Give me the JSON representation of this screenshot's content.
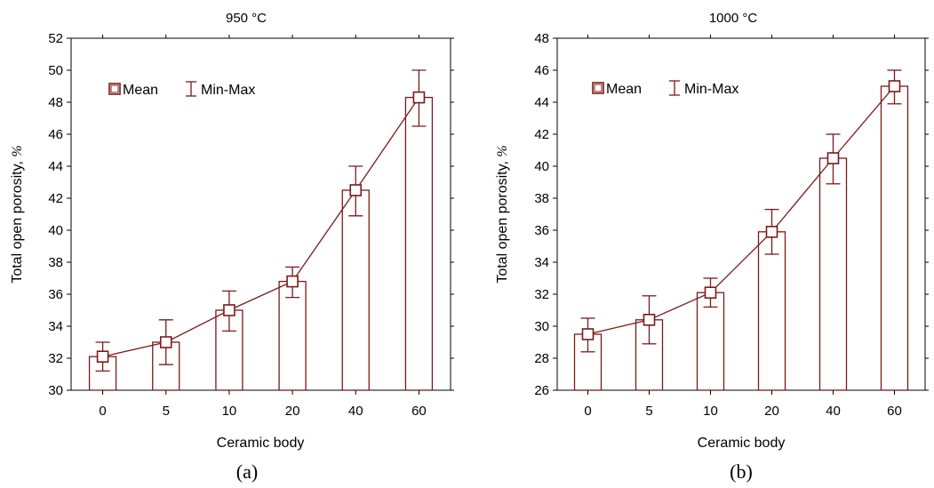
{
  "chart_data": [
    {
      "type": "bar",
      "title": "950 °C",
      "caption": "(a)",
      "xlabel": "Ceramic body",
      "ylabel_text": "Total open porosity, ",
      "ylabel_unit": "%",
      "categories": [
        "0",
        "5",
        "10",
        "20",
        "40",
        "60"
      ],
      "ylim": [
        30,
        52
      ],
      "yticks": [
        30,
        32,
        34,
        36,
        38,
        40,
        42,
        44,
        46,
        48,
        50,
        52
      ],
      "legend": {
        "placement": "top-left",
        "mean_label": "Mean",
        "minmax_label": "Min-Max"
      },
      "series": [
        {
          "name": "Mean",
          "values": [
            32.1,
            33.0,
            35.0,
            36.8,
            42.5,
            48.3
          ]
        },
        {
          "name": "Min",
          "values": [
            31.2,
            31.6,
            33.7,
            35.8,
            40.9,
            46.5
          ]
        },
        {
          "name": "Max",
          "values": [
            33.0,
            34.4,
            36.2,
            37.7,
            44.0,
            50.0
          ]
        }
      ],
      "grid": false,
      "color": "#7b1a1a"
    },
    {
      "type": "bar",
      "title": "1000 °C",
      "caption": "(b)",
      "xlabel": "Ceramic body",
      "ylabel_text": "Total open porosity, ",
      "ylabel_unit": "%",
      "categories": [
        "0",
        "5",
        "10",
        "20",
        "40",
        "60"
      ],
      "ylim": [
        26,
        48
      ],
      "yticks": [
        26,
        28,
        30,
        32,
        34,
        36,
        38,
        40,
        42,
        44,
        46,
        48
      ],
      "legend": {
        "placement": "top-left",
        "mean_label": "Mean",
        "minmax_label": "Min-Max"
      },
      "series": [
        {
          "name": "Mean",
          "values": [
            29.5,
            30.4,
            32.1,
            35.9,
            40.5,
            45.0
          ]
        },
        {
          "name": "Min",
          "values": [
            28.4,
            28.9,
            31.2,
            34.5,
            38.9,
            43.9
          ]
        },
        {
          "name": "Max",
          "values": [
            30.5,
            31.9,
            33.0,
            37.3,
            42.0,
            46.0
          ]
        }
      ],
      "grid": false,
      "color": "#7b1a1a"
    }
  ]
}
